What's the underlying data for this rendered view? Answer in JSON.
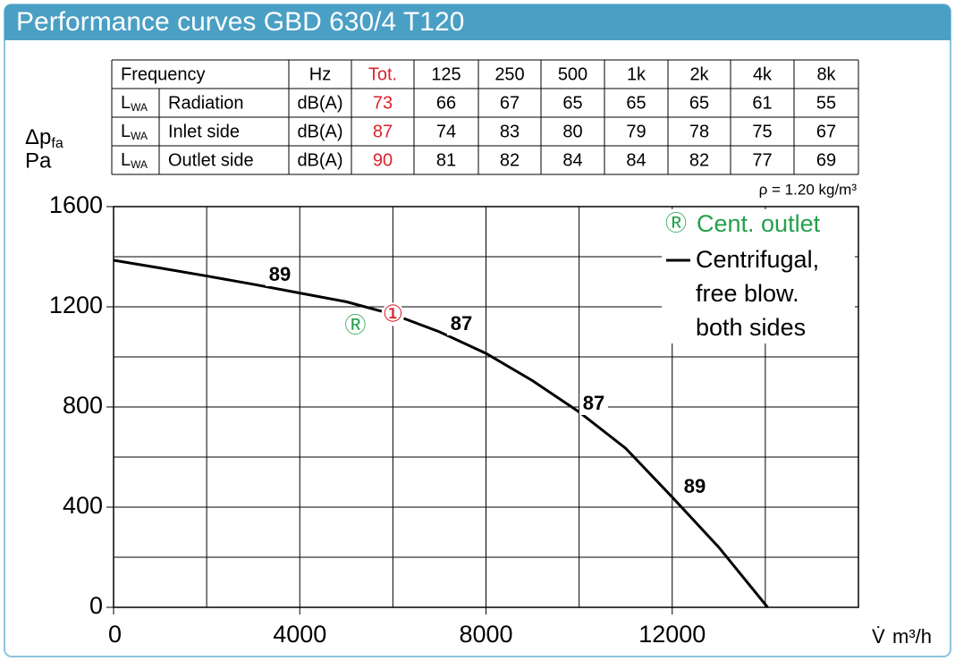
{
  "header": {
    "title": "Performance curves GBD 630/4 T120"
  },
  "table": {
    "header": [
      "Frequency",
      "Hz",
      "Tot.",
      "125",
      "250",
      "500",
      "1k",
      "2k",
      "4k",
      "8k"
    ],
    "rows": [
      {
        "symbol": "L",
        "symbol_sub": "WA",
        "label": "Radiation",
        "unit": "dB(A)",
        "values": [
          73,
          66,
          67,
          65,
          65,
          65,
          61,
          55
        ]
      },
      {
        "symbol": "L",
        "symbol_sub": "WA",
        "label": "Inlet side",
        "unit": "dB(A)",
        "values": [
          87,
          74,
          83,
          80,
          79,
          78,
          75,
          67
        ]
      },
      {
        "symbol": "L",
        "symbol_sub": "WA",
        "label": "Outlet side",
        "unit": "dB(A)",
        "values": [
          90,
          81,
          82,
          84,
          84,
          82,
          77,
          69
        ]
      }
    ]
  },
  "chart_data": {
    "type": "line",
    "ylabel": "Δp",
    "ylabel_sub": "fa",
    "ylabel_unit": "Pa",
    "xlabel": "V̇",
    "xlabel_unit": "m³/h",
    "density_note": "ρ = 1.20 kg/m³",
    "x": [
      0,
      1000,
      2000,
      3000,
      4000,
      5000,
      6000,
      7000,
      8000,
      9000,
      10000,
      11000,
      12000,
      13000,
      14050
    ],
    "series": [
      {
        "name": "Centrifugal, free blow. both sides",
        "color": "#000000",
        "values": [
          1386,
          1355,
          1323,
          1290,
          1255,
          1220,
          1170,
          1100,
          1014,
          905,
          780,
          635,
          440,
          240,
          0
        ]
      }
    ],
    "outlet_marker": "Ⓡ",
    "outlet_label": "Cent. outlet",
    "outlet_color": "#23a04b",
    "operating_point": {
      "label": "①",
      "x": 6000,
      "y": 1170,
      "color": "#d9232e"
    },
    "curve_labels": [
      89,
      87,
      87,
      89
    ],
    "xlim": [
      0,
      16000
    ],
    "xticks": [
      0,
      4000,
      8000,
      12000
    ],
    "x_minor_ticks": [
      2000,
      6000,
      10000,
      14000,
      16000
    ],
    "ylim": [
      0,
      1600
    ],
    "yticks": [
      0,
      400,
      800,
      1200,
      1600
    ],
    "y_minor_ticks": [
      200,
      600,
      1000,
      1400
    ],
    "grid": true
  }
}
